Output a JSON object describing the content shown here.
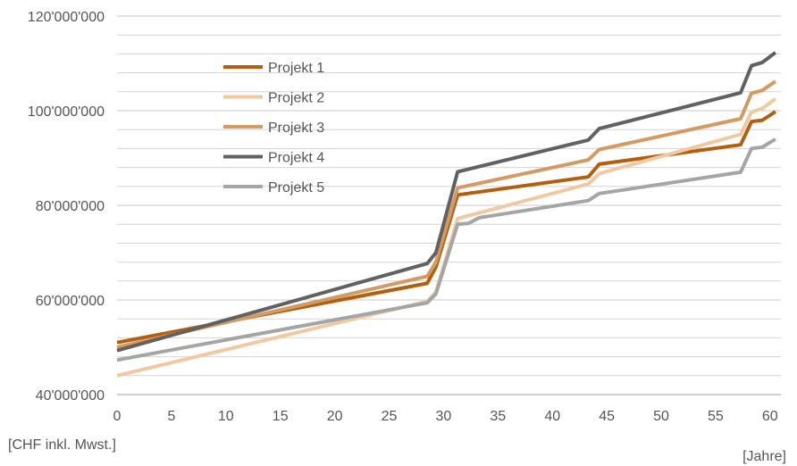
{
  "chart_data": {
    "type": "line",
    "xlabel": "[Jahre]",
    "ylabel": "[CHF inkl. Mwst.]",
    "xlim": [
      0,
      61
    ],
    "ylim": [
      40000000,
      120000000
    ],
    "x_ticks": [
      0,
      5,
      10,
      15,
      20,
      25,
      30,
      35,
      40,
      45,
      50,
      55,
      60
    ],
    "y_ticks": [
      {
        "value": 40000000,
        "label": "40'000'000"
      },
      {
        "value": 60000000,
        "label": "60'000'000"
      },
      {
        "value": 80000000,
        "label": "80'000'000"
      },
      {
        "value": 100000000,
        "label": "100'000'000"
      },
      {
        "value": 120000000,
        "label": "120'000'000"
      }
    ],
    "y_minor_step": 4000000,
    "grid": true,
    "legend_position": "top-left",
    "series": [
      {
        "name": "Projekt 1",
        "color": "#b25f0f",
        "points": [
          [
            0,
            51000000
          ],
          [
            28.5,
            63500000
          ],
          [
            29.3,
            67000000
          ],
          [
            31.3,
            82200000
          ],
          [
            43.3,
            86000000
          ],
          [
            44.3,
            88700000
          ],
          [
            57.3,
            92800000
          ],
          [
            58.3,
            97700000
          ],
          [
            59.3,
            98000000
          ],
          [
            60.5,
            99800000
          ]
        ]
      },
      {
        "name": "Projekt 2",
        "color": "#f0c9a3",
        "points": [
          [
            0,
            44000000
          ],
          [
            28.5,
            59700000
          ],
          [
            29.3,
            61700000
          ],
          [
            31.3,
            77200000
          ],
          [
            43.3,
            84500000
          ],
          [
            44.3,
            86700000
          ],
          [
            57.3,
            95000000
          ],
          [
            58.3,
            99700000
          ],
          [
            59.3,
            100500000
          ],
          [
            60.5,
            102500000
          ]
        ]
      },
      {
        "name": "Projekt 3",
        "color": "#d49a64",
        "points": [
          [
            0,
            50000000
          ],
          [
            28.5,
            65000000
          ],
          [
            29.3,
            68000000
          ],
          [
            31.3,
            83700000
          ],
          [
            43.3,
            89600000
          ],
          [
            44.3,
            91800000
          ],
          [
            57.3,
            98300000
          ],
          [
            58.3,
            103700000
          ],
          [
            59.3,
            104300000
          ],
          [
            60.5,
            106200000
          ]
        ]
      },
      {
        "name": "Projekt 4",
        "color": "#616161",
        "points": [
          [
            0,
            49300000
          ],
          [
            28.5,
            67700000
          ],
          [
            29.3,
            70000000
          ],
          [
            31.3,
            87100000
          ],
          [
            43.3,
            93800000
          ],
          [
            44.3,
            96200000
          ],
          [
            57.3,
            103800000
          ],
          [
            58.3,
            109500000
          ],
          [
            59.3,
            110200000
          ],
          [
            60.5,
            112300000
          ]
        ]
      },
      {
        "name": "Projekt 5",
        "color": "#a5a5a5",
        "points": [
          [
            0,
            47300000
          ],
          [
            28.5,
            59400000
          ],
          [
            29.3,
            61300000
          ],
          [
            31.3,
            76000000
          ],
          [
            32.3,
            76200000
          ],
          [
            33.3,
            77400000
          ],
          [
            43.3,
            81000000
          ],
          [
            44.3,
            82500000
          ],
          [
            57.3,
            87000000
          ],
          [
            58.3,
            92000000
          ],
          [
            59.3,
            92300000
          ],
          [
            60.5,
            94000000
          ]
        ]
      }
    ]
  }
}
